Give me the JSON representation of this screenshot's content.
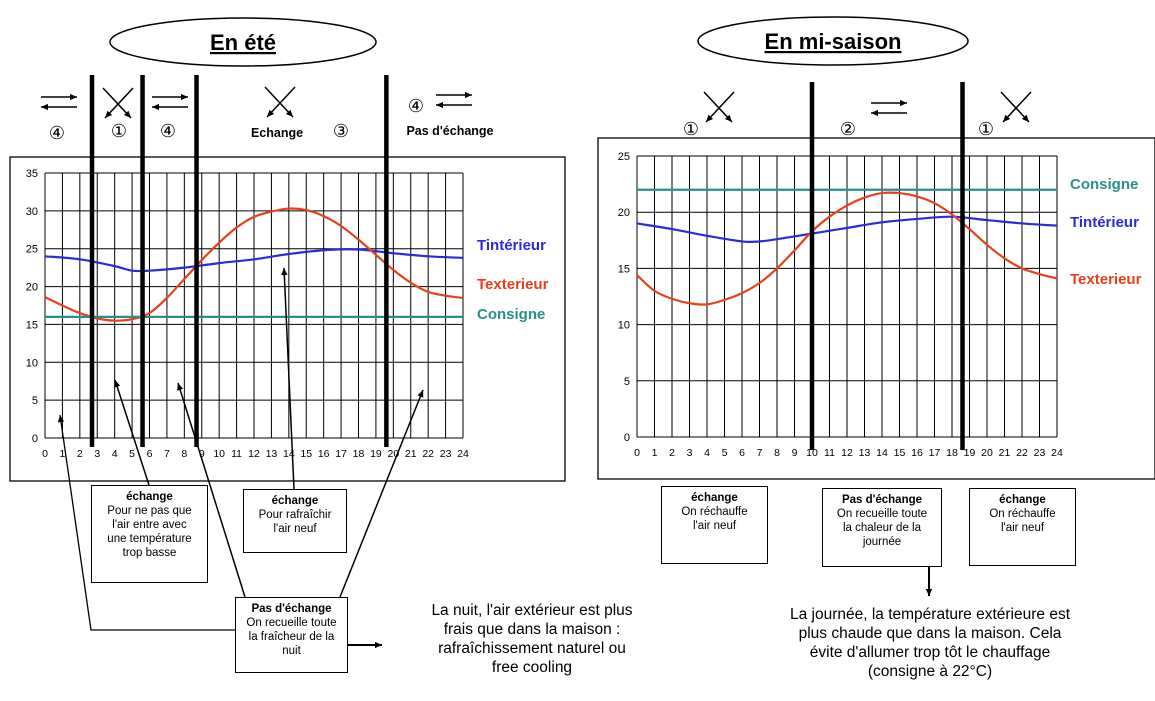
{
  "chart_data": [
    {
      "type": "line",
      "title": "En été",
      "xlabel": "",
      "ylabel": "",
      "x": [
        0,
        1,
        2,
        3,
        4,
        5,
        6,
        7,
        8,
        9,
        10,
        11,
        12,
        13,
        14,
        15,
        16,
        17,
        18,
        19,
        20,
        21,
        22,
        23,
        24
      ],
      "yticks": [
        0,
        5,
        10,
        15,
        20,
        25,
        30,
        35
      ],
      "ylim": [
        0,
        35
      ],
      "xlim": [
        0,
        24
      ],
      "grid": true,
      "series": [
        {
          "name": "Tintérieur",
          "color": "#2b2bdc",
          "x": [
            0,
            2,
            4,
            5,
            6,
            8,
            10,
            12,
            14,
            16,
            18,
            20,
            22,
            24
          ],
          "values": [
            24,
            23.6,
            22.7,
            22.1,
            22.1,
            22.5,
            23.1,
            23.6,
            24.3,
            24.8,
            24.9,
            24.4,
            24,
            23.8
          ]
        },
        {
          "name": "Texterieur",
          "color": "#e8401c",
          "x": [
            0,
            1,
            2,
            3,
            4,
            5,
            6,
            7,
            8,
            9,
            10,
            11,
            12,
            13,
            14,
            15,
            16,
            17,
            18,
            19,
            20,
            21,
            22,
            23,
            24
          ],
          "values": [
            18.6,
            17.5,
            16.5,
            15.8,
            15.5,
            15.7,
            16.5,
            18.5,
            21,
            23.5,
            25.8,
            27.8,
            29.2,
            29.9,
            30.3,
            30.1,
            29.3,
            28,
            26.2,
            24.2,
            22.2,
            20.5,
            19.3,
            18.8,
            18.5
          ]
        },
        {
          "name": "Consigne",
          "color": "#2a8f8a",
          "x": [
            0,
            24
          ],
          "values": [
            16,
            16
          ]
        }
      ],
      "dividers": [
        2.7,
        5.6,
        8.7,
        19.6
      ],
      "zones": [
        {
          "mark": "④",
          "arrows": "parallel"
        },
        {
          "mark": "①",
          "arrows": "cross"
        },
        {
          "mark": "④",
          "arrows": "parallel"
        },
        {
          "mark": "③",
          "arrows": "cross",
          "label": "Echange"
        },
        {
          "mark": "④",
          "arrows": "parallel",
          "label": "Pas d'échange"
        }
      ],
      "notes": [
        {
          "title": "échange",
          "lines": [
            "Pour ne pas que",
            "l'air entre avec",
            "une température",
            "trop basse"
          ]
        },
        {
          "title": "échange",
          "lines": [
            "Pour rafraîchir",
            "l'air neuf"
          ]
        },
        {
          "title": "Pas d'échange",
          "lines": [
            "On recueille toute",
            "la fraîcheur de la",
            "nuit"
          ]
        }
      ],
      "caption": [
        "La nuit, l'air extérieur est plus",
        "frais que dans la maison :",
        "rafraîchissement naturel ou",
        "free cooling"
      ]
    },
    {
      "type": "line",
      "title": "En mi-saison",
      "xlabel": "",
      "ylabel": "",
      "x": [
        0,
        1,
        2,
        3,
        4,
        5,
        6,
        7,
        8,
        9,
        10,
        11,
        12,
        13,
        14,
        15,
        16,
        17,
        18,
        19,
        20,
        21,
        22,
        23,
        24
      ],
      "yticks": [
        0,
        5,
        10,
        15,
        20,
        25
      ],
      "ylim": [
        0,
        25
      ],
      "xlim": [
        0,
        24
      ],
      "grid": true,
      "series": [
        {
          "name": "Consigne",
          "color": "#2a8f8a",
          "x": [
            0,
            24
          ],
          "values": [
            22,
            22
          ]
        },
        {
          "name": "Tintérieur",
          "color": "#2b2bdc",
          "x": [
            0,
            2,
            4,
            6,
            7,
            8,
            10,
            12,
            14,
            16,
            18,
            20,
            22,
            24
          ],
          "values": [
            19,
            18.5,
            17.9,
            17.4,
            17.4,
            17.6,
            18.1,
            18.6,
            19.1,
            19.4,
            19.6,
            19.3,
            19,
            18.8
          ]
        },
        {
          "name": "Texterieur",
          "color": "#e8401c",
          "x": [
            0,
            1,
            2,
            3,
            4,
            5,
            6,
            7,
            8,
            9,
            10,
            11,
            12,
            13,
            14,
            15,
            16,
            17,
            18,
            19,
            20,
            21,
            22,
            23,
            24
          ],
          "values": [
            14.4,
            13,
            12.3,
            11.9,
            11.8,
            12.2,
            12.8,
            13.7,
            15,
            16.6,
            18.3,
            19.6,
            20.6,
            21.3,
            21.7,
            21.7,
            21.4,
            20.8,
            19.8,
            18.5,
            17.1,
            15.9,
            15,
            14.5,
            14.1
          ]
        }
      ],
      "dividers": [
        10,
        18.6
      ],
      "zones": [
        {
          "mark": "①",
          "arrows": "cross"
        },
        {
          "mark": "②",
          "arrows": "parallel"
        },
        {
          "mark": "①",
          "arrows": "cross"
        }
      ],
      "notes": [
        {
          "title": "échange",
          "lines": [
            "On réchauffe",
            "l'air neuf"
          ]
        },
        {
          "title": "Pas d'échange",
          "lines": [
            "On recueille toute",
            "la chaleur de la",
            "journée"
          ]
        },
        {
          "title": "échange",
          "lines": [
            "On réchauffe",
            "l'air neuf"
          ]
        }
      ],
      "caption": [
        "La journée, la température extérieure est",
        "plus chaude que dans la maison. Cela",
        "évite d'allumer trop tôt le chauffage",
        "(consigne à 22°C)"
      ]
    }
  ]
}
